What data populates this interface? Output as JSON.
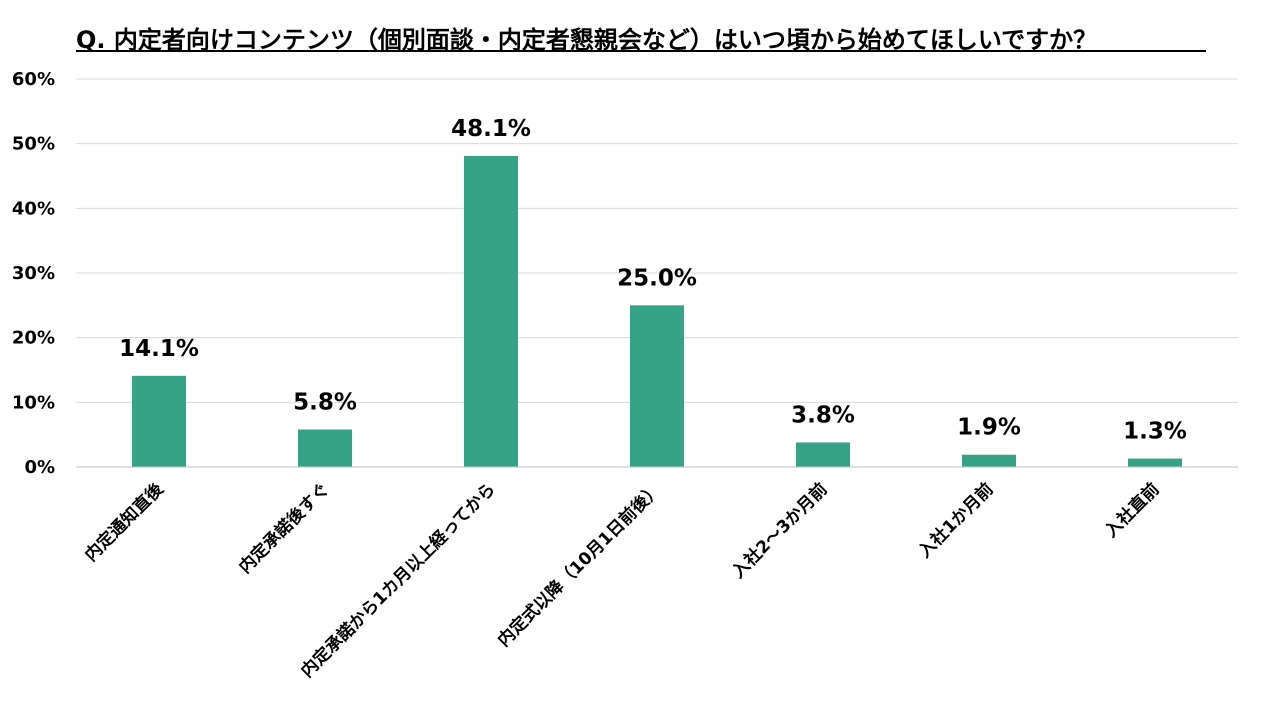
{
  "chart_data": {
    "type": "bar",
    "title": "Q. 内定者向けコンテンツ（個別面談・内定者懇親会など）はいつ頃から始めてほしいですか？",
    "categories": [
      "内定通知直後",
      "内定承諾後すぐ",
      "内定承諾から1カ月以上経ってから",
      "内定式以降（10月1日前後）",
      "入社2〜3か月前",
      "入社1か月前",
      "入社直前"
    ],
    "values": [
      14.1,
      5.8,
      48.1,
      25.0,
      3.8,
      1.9,
      1.3
    ],
    "value_labels": [
      "14.1%",
      "5.8%",
      "48.1%",
      "25.0%",
      "3.8%",
      "1.9%",
      "1.3%"
    ],
    "yticks": [
      0,
      10,
      20,
      30,
      40,
      50,
      60
    ],
    "ytick_labels": [
      "0%",
      "10%",
      "20%",
      "30%",
      "40%",
      "50%",
      "60%"
    ],
    "ylim": [
      0,
      60
    ],
    "xlabel": "",
    "ylabel": "",
    "grid": true,
    "legend": "none",
    "bar_color": "#36a387",
    "grid_color": "#d9d9d9",
    "axis_color": "#bfbfbf"
  }
}
